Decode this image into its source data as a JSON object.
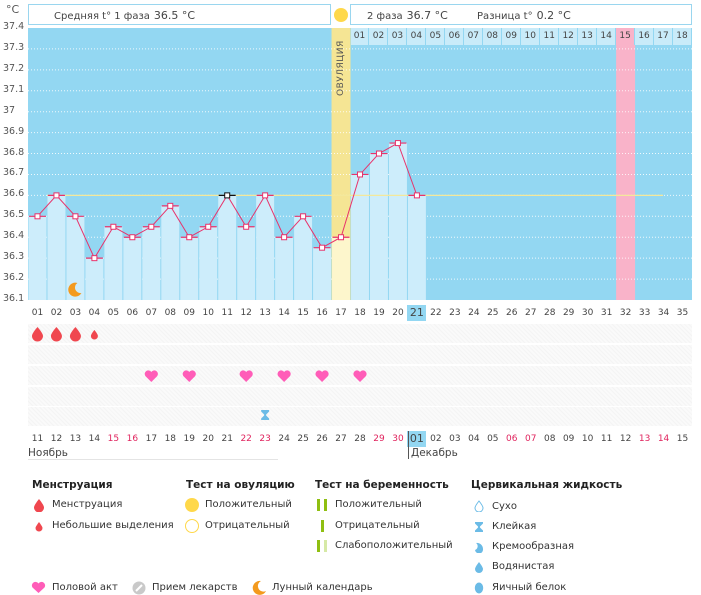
{
  "header": {
    "unit": "°C",
    "phase1_label": "Средняя t° 1 фаза",
    "phase1_value": "36.5 °C",
    "phase2_label": "2 фаза",
    "phase2_value": "36.7 °C",
    "diff_label": "Разница t°",
    "diff_value": "0.2 °C"
  },
  "ovulation_label": "ОВУЛЯЦИЯ",
  "colors": {
    "plot_bg": "#93d7f2",
    "bar": "#cdedfb",
    "ovulation_band": "#f5e594",
    "ovulation_bar": "#fdf6cc",
    "expected_period": "#f9b3c9",
    "line": "#e8336b",
    "coverline": "#f4e89b",
    "weekend": "#e0245e"
  },
  "chart_data": {
    "type": "bar",
    "title": "",
    "xlabel": "",
    "ylabel": "°C",
    "ylim": [
      36.1,
      37.4
    ],
    "yticks": [
      "37.4",
      "37.3",
      "37.2",
      "37.1",
      "37",
      "36.9",
      "36.8",
      "36.7",
      "36.6",
      "36.5",
      "36.4",
      "36.3",
      "36.2",
      "36.1"
    ],
    "grid": true,
    "cycle_days": [
      "01",
      "02",
      "03",
      "04",
      "05",
      "06",
      "07",
      "08",
      "09",
      "10",
      "11",
      "12",
      "13",
      "14",
      "15",
      "16",
      "17",
      "18",
      "19",
      "20",
      "21",
      "22",
      "23",
      "24",
      "25",
      "26",
      "27",
      "28",
      "29",
      "30",
      "31",
      "32",
      "33",
      "34",
      "35"
    ],
    "current_cycle_day": "21",
    "temperatures": [
      36.5,
      36.6,
      36.5,
      36.3,
      36.45,
      36.4,
      36.45,
      36.55,
      36.4,
      36.45,
      36.6,
      36.45,
      36.6,
      36.4,
      36.5,
      36.35,
      36.4,
      36.7,
      36.8,
      36.85,
      36.6
    ],
    "coverline": 36.6,
    "ovulation_day": 17,
    "expected_period_day": 32,
    "lunar_day": 3,
    "phase2_days": [
      "01",
      "02",
      "03",
      "04",
      "05",
      "06",
      "07",
      "08",
      "09",
      "10",
      "11",
      "12",
      "13",
      "14",
      "15",
      "16",
      "17",
      "18"
    ],
    "phase2_highlight": "15"
  },
  "calendar": {
    "dates": [
      "11",
      "12",
      "13",
      "14",
      "15",
      "16",
      "17",
      "18",
      "19",
      "20",
      "21",
      "22",
      "23",
      "24",
      "25",
      "26",
      "27",
      "28",
      "29",
      "30",
      "01",
      "02",
      "03",
      "04",
      "05",
      "06",
      "07",
      "08",
      "09",
      "10",
      "11",
      "12",
      "13",
      "14",
      "15"
    ],
    "weekend_indices": [
      4,
      5,
      11,
      12,
      18,
      19,
      25,
      26,
      32,
      33
    ],
    "today_index": 20,
    "months": [
      {
        "name": "Ноябрь"
      },
      {
        "name": "Декабрь"
      }
    ]
  },
  "markers": {
    "menstruation": [
      {
        "day": 1,
        "type": "heavy"
      },
      {
        "day": 2,
        "type": "heavy"
      },
      {
        "day": 3,
        "type": "heavy"
      },
      {
        "day": 4,
        "type": "light"
      }
    ],
    "intercourse": [
      7,
      9,
      12,
      14,
      16,
      18
    ],
    "cervical_sticky": [
      13
    ]
  },
  "legend": {
    "menstruation": {
      "title": "Менструация",
      "items": [
        "Менструация",
        "Небольшие выделения"
      ]
    },
    "ovulation_test": {
      "title": "Тест на овуляцию",
      "items": [
        "Положительный",
        "Отрицательный"
      ]
    },
    "pregnancy_test": {
      "title": "Тест на беременность",
      "items": [
        "Положительный",
        "Отрицательный",
        "Слабоположительный"
      ]
    },
    "cervical_fluid": {
      "title": "Цервикальная жидкость",
      "items": [
        "Сухо",
        "Клейкая",
        "Кремообразная",
        "Водянистая",
        "Яичный белок"
      ]
    },
    "other": [
      "Половой акт",
      "Прием лекарств",
      "Лунный календарь"
    ]
  }
}
